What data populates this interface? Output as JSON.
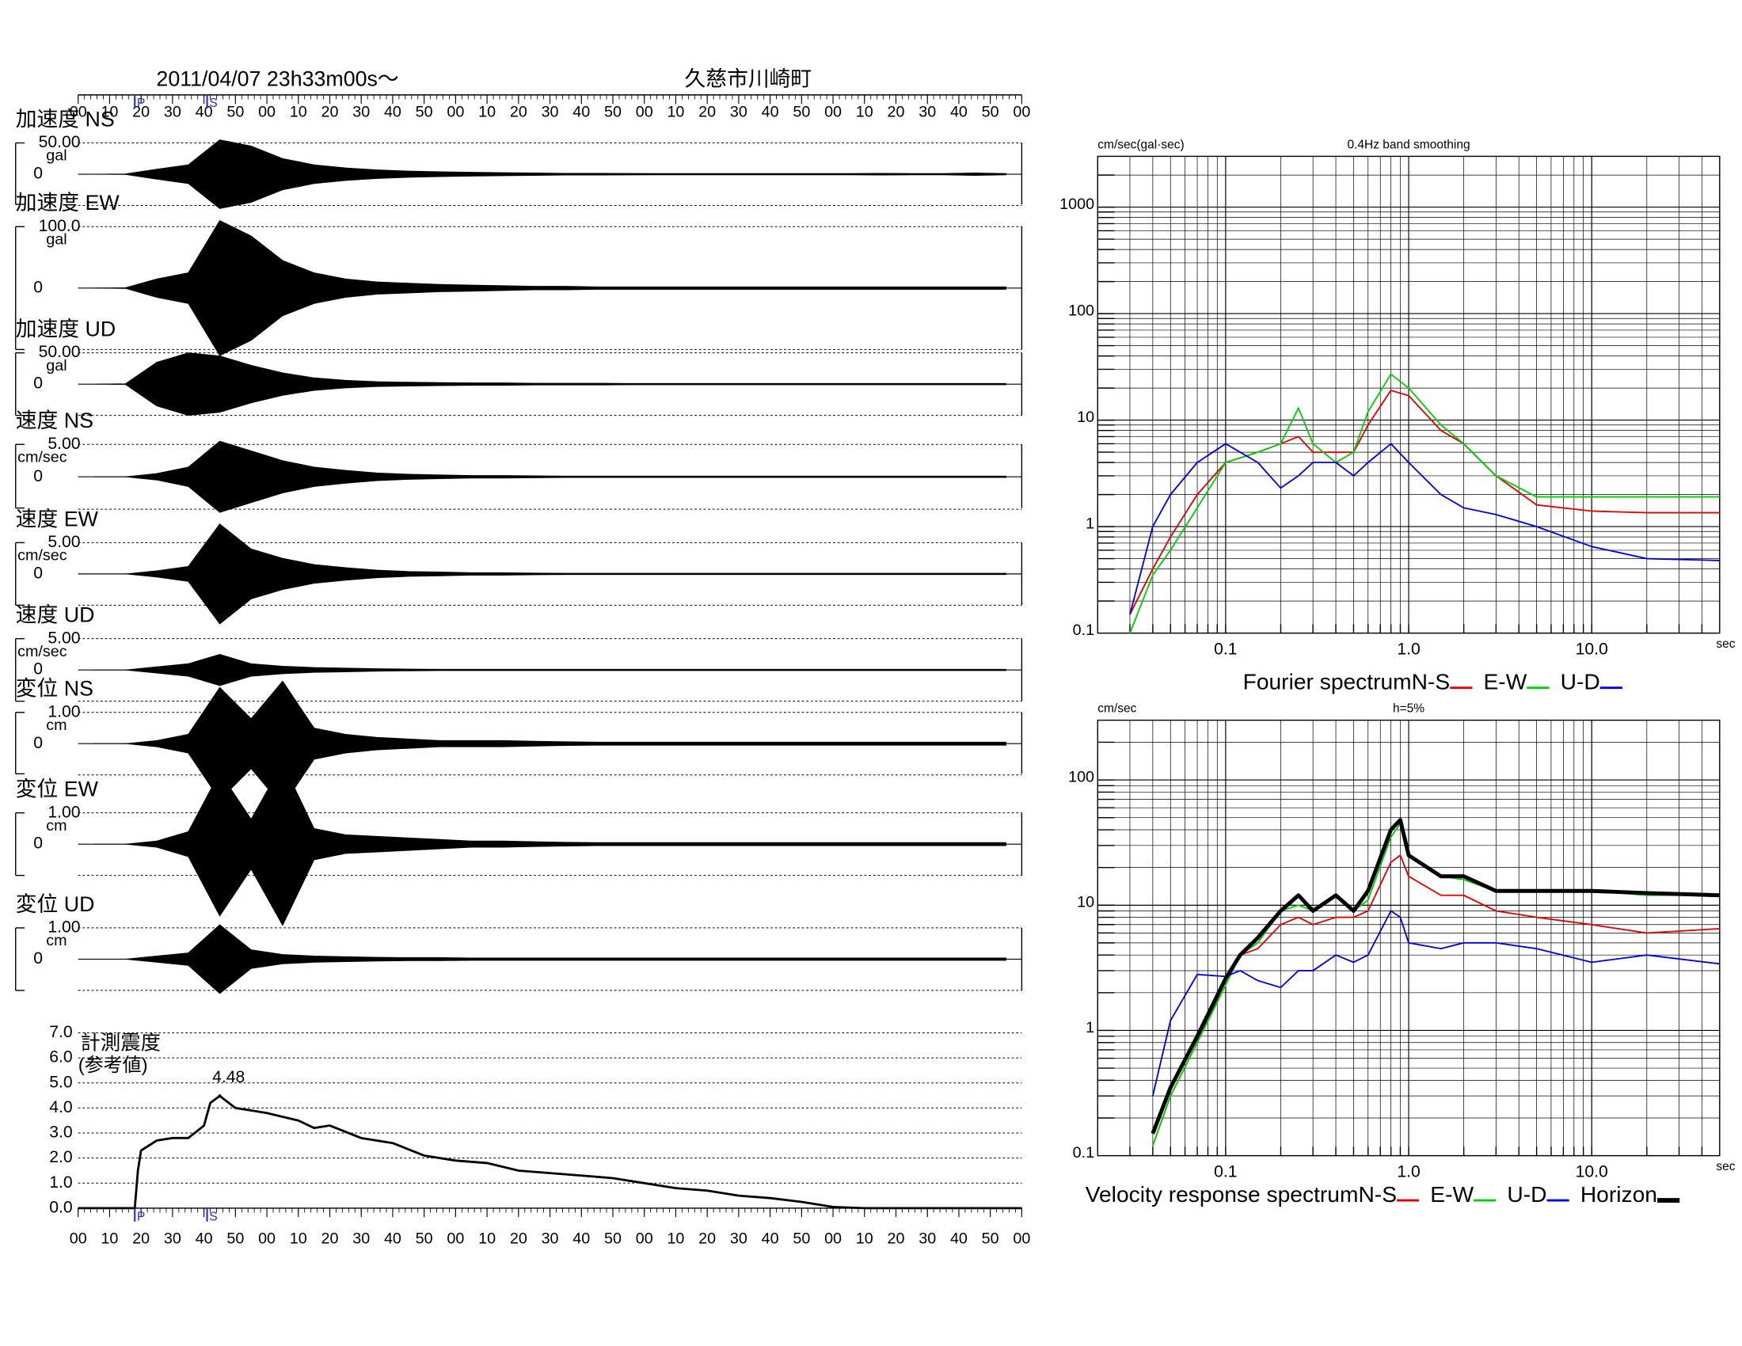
{
  "chart_data": [
    {
      "type": "waveform",
      "title": "2011/04/07  23h33m00s〜",
      "subtitle": "久慈市川崎町",
      "xlim": [
        0,
        300
      ],
      "xticks": [
        {
          "value": 0,
          "label": "00"
        },
        10,
        20,
        30,
        40,
        50,
        {
          "value": 60,
          "label": "00"
        },
        {
          "value": 70,
          "label": "10"
        },
        {
          "value": 80,
          "label": "20"
        },
        {
          "value": 90,
          "label": "30"
        },
        {
          "value": 100,
          "label": "40"
        },
        {
          "value": 110,
          "label": "50"
        },
        {
          "value": 120,
          "label": "00"
        },
        {
          "value": 130,
          "label": "10"
        },
        {
          "value": 140,
          "label": "20"
        },
        {
          "value": 150,
          "label": "30"
        },
        {
          "value": 160,
          "label": "40"
        },
        {
          "value": 170,
          "label": "50"
        },
        {
          "value": 180,
          "label": "00"
        },
        {
          "value": 190,
          "label": "10"
        },
        {
          "value": 200,
          "label": "20"
        },
        {
          "value": 210,
          "label": "30"
        },
        {
          "value": 220,
          "label": "40"
        },
        {
          "value": 230,
          "label": "50"
        },
        {
          "value": 240,
          "label": "00"
        },
        {
          "value": 250,
          "label": "10"
        },
        {
          "value": 260,
          "label": "20"
        },
        {
          "value": 270,
          "label": "30"
        },
        {
          "value": 280,
          "label": "40"
        },
        {
          "value": 290,
          "label": "50"
        },
        {
          "value": 300,
          "label": "00"
        }
      ],
      "phases": [
        {
          "label": "P",
          "time": 18
        },
        {
          "label": "S",
          "time": 41
        }
      ],
      "traces": [
        {
          "title": "加速度 NS",
          "unit": "gal",
          "ylim": [
            -50,
            50
          ],
          "yticks": [
            {
              "value": 50,
              "label": "50.00"
            },
            0
          ],
          "envelope": [
            0,
            0.3,
            8,
            15,
            55,
            45,
            25,
            15,
            10,
            7,
            5,
            4,
            3,
            2.5,
            2,
            1.5,
            1.5,
            1.2,
            1,
            1,
            1,
            1,
            1,
            1,
            1,
            1.5,
            1,
            1,
            2,
            1
          ]
        },
        {
          "title": "加速度 EW",
          "unit": "gal",
          "ylim": [
            -100,
            100
          ],
          "yticks": [
            {
              "value": 100,
              "label": "100.0"
            },
            0
          ],
          "envelope": [
            0,
            0.5,
            15,
            25,
            110,
            85,
            45,
            25,
            15,
            10,
            8,
            6,
            5,
            4,
            3,
            3,
            2,
            2,
            2,
            2,
            2,
            2,
            2,
            2,
            2,
            2,
            2,
            2,
            2,
            2
          ]
        },
        {
          "title": "加速度 UD",
          "unit": "gal",
          "ylim": [
            -50,
            50
          ],
          "yticks": [
            {
              "value": 50,
              "label": "50.00"
            },
            0
          ],
          "envelope": [
            0,
            0.5,
            35,
            50,
            45,
            30,
            18,
            10,
            6,
            4,
            3,
            2.5,
            2,
            2,
            1.5,
            1.5,
            1.5,
            1,
            1,
            1,
            1,
            1,
            1,
            1,
            1,
            1,
            1,
            1,
            1,
            1
          ]
        },
        {
          "title": "速度 NS",
          "unit": "cm/sec",
          "ylim": [
            -5,
            5
          ],
          "yticks": [
            {
              "value": 5,
              "label": "5.00"
            },
            0
          ],
          "envelope": [
            0,
            0,
            0.5,
            1.5,
            5.5,
            4,
            2.5,
            1.5,
            1,
            0.6,
            0.4,
            0.3,
            0.2,
            0.2,
            0.15,
            0.1,
            0.1,
            0.1,
            0.1,
            0.1,
            0.1,
            0.1,
            0.1,
            0.1,
            0.1,
            0.1,
            0.1,
            0.1,
            0.1,
            0.1
          ]
        },
        {
          "title": "速度 EW",
          "unit": "cm/sec",
          "ylim": [
            -5,
            5
          ],
          "yticks": [
            {
              "value": 5,
              "label": "5.00"
            },
            0
          ],
          "envelope": [
            0,
            0,
            0.5,
            1.2,
            8,
            4,
            2.5,
            1.5,
            1,
            0.6,
            0.4,
            0.3,
            0.2,
            0.2,
            0.15,
            0.1,
            0.1,
            0.1,
            0.1,
            0.1,
            0.1,
            0.1,
            0.1,
            0.1,
            0.1,
            0.1,
            0.1,
            0.1,
            0.1,
            0.1
          ]
        },
        {
          "title": "速度 UD",
          "unit": "cm/sec",
          "ylim": [
            -5,
            5
          ],
          "yticks": [
            {
              "value": 5,
              "label": "5.00"
            },
            0
          ],
          "envelope": [
            0,
            0,
            0.5,
            1,
            2.5,
            1,
            0.6,
            0.4,
            0.3,
            0.2,
            0.15,
            0.1,
            0.1,
            0.1,
            0.1,
            0.1,
            0.1,
            0.1,
            0.1,
            0.1,
            0.1,
            0.1,
            0.1,
            0.1,
            0.1,
            0.1,
            0.1,
            0.1,
            0.1,
            0.1
          ]
        },
        {
          "title": "変位 NS",
          "unit": "cm",
          "ylim": [
            -1,
            1
          ],
          "yticks": [
            {
              "value": 1,
              "label": "1.00"
            },
            0
          ],
          "envelope": [
            0,
            0,
            0.1,
            0.3,
            1.8,
            0.8,
            2,
            0.5,
            0.3,
            0.2,
            0.15,
            0.1,
            0.1,
            0.1,
            0.08,
            0.06,
            0.05,
            0.05,
            0.05,
            0.05,
            0.05,
            0.05,
            0.05,
            0.05,
            0.05,
            0.05,
            0.05,
            0.05,
            0.05,
            0.05
          ]
        },
        {
          "title": "変位 EW",
          "unit": "cm",
          "ylim": [
            -1,
            1
          ],
          "yticks": [
            {
              "value": 1,
              "label": "1.00"
            },
            0
          ],
          "envelope": [
            0,
            0,
            0.1,
            0.4,
            2.3,
            0.8,
            2.6,
            0.5,
            0.3,
            0.25,
            0.2,
            0.15,
            0.1,
            0.1,
            0.08,
            0.06,
            0.05,
            0.05,
            0.05,
            0.05,
            0.05,
            0.05,
            0.05,
            0.05,
            0.05,
            0.05,
            0.05,
            0.05,
            0.05,
            0.05
          ]
        },
        {
          "title": "変位 UD",
          "unit": "cm",
          "ylim": [
            -1,
            1
          ],
          "yticks": [
            {
              "value": 1,
              "label": "1.00"
            },
            0
          ],
          "envelope": [
            0,
            0,
            0.1,
            0.2,
            1.1,
            0.3,
            0.15,
            0.1,
            0.08,
            0.06,
            0.05,
            0.05,
            0.04,
            0.04,
            0.04,
            0.04,
            0.04,
            0.04,
            0.04,
            0.04,
            0.04,
            0.04,
            0.04,
            0.04,
            0.04,
            0.04,
            0.04,
            0.04,
            0.04,
            0.04
          ]
        }
      ]
    },
    {
      "type": "line",
      "title": "計測震度",
      "subtitle": "(参考値)",
      "color": "#000000",
      "x": [
        0,
        17,
        18,
        19,
        20,
        25,
        30,
        35,
        40,
        42,
        45,
        50,
        55,
        60,
        70,
        75,
        80,
        90,
        100,
        110,
        120,
        130,
        140,
        150,
        160,
        170,
        180,
        190,
        200,
        210,
        220,
        230,
        240,
        250,
        300
      ],
      "values": [
        0,
        0,
        0,
        1.5,
        2.3,
        2.7,
        2.8,
        2.8,
        3.3,
        4.2,
        4.48,
        4.0,
        3.9,
        3.8,
        3.5,
        3.2,
        3.3,
        2.8,
        2.6,
        2.1,
        1.9,
        1.8,
        1.5,
        1.4,
        1.3,
        1.2,
        1.0,
        0.8,
        0.7,
        0.5,
        0.4,
        0.25,
        0.05,
        0,
        0
      ],
      "ylim": [
        0,
        7
      ],
      "yticks": [
        {
          "value": 0,
          "label": "0.0"
        },
        {
          "value": 1,
          "label": "1.0"
        },
        {
          "value": 2,
          "label": "2.0"
        },
        {
          "value": 3,
          "label": "3.0"
        },
        {
          "value": 4,
          "label": "4.0"
        },
        {
          "value": 5,
          "label": "5.0"
        },
        {
          "value": 6,
          "label": "6.0"
        },
        {
          "value": 7,
          "label": "7.0"
        }
      ],
      "annotations": [
        {
          "text": "4.48",
          "x": 45,
          "y": 4.48
        }
      ]
    },
    {
      "type": "loglog",
      "title": "0.4Hz band smoothing",
      "y_label": "cm/sec(gal·sec)",
      "x_label": "sec",
      "legend_title": "Fourier spectrum ",
      "xlim": [
        0.02,
        50
      ],
      "ylim": [
        0.1,
        3000
      ],
      "xticks": [
        0.1,
        {
          "value": 1,
          "label": "1.0"
        },
        {
          "value": 10,
          "label": "10.0"
        }
      ],
      "yticks": [
        0.1,
        1,
        10,
        100,
        1000
      ],
      "x": [
        0.03,
        0.04,
        0.05,
        0.07,
        0.1,
        0.15,
        0.2,
        0.25,
        0.3,
        0.4,
        0.5,
        0.6,
        0.8,
        1,
        1.5,
        2,
        3,
        5,
        10,
        20,
        50
      ],
      "series": [
        {
          "name": "N-S",
          "color": "#e00000",
          "width": 1.3,
          "values": [
            0.15,
            0.4,
            0.8,
            2,
            4,
            5,
            6,
            7,
            5,
            5,
            5,
            9,
            19,
            17,
            8,
            6,
            3,
            1.6,
            1.4,
            1.35,
            1.35
          ]
        },
        {
          "name": "E-W",
          "color": "#00d000",
          "width": 1.3,
          "values": [
            0.1,
            0.35,
            0.6,
            1.5,
            4,
            5,
            6,
            13,
            6,
            4,
            5,
            12,
            27,
            20,
            9,
            6,
            3,
            1.9,
            1.9,
            1.9,
            1.9
          ]
        },
        {
          "name": "U-D",
          "color": "#0000e0",
          "width": 1.3,
          "values": [
            0.15,
            1,
            2,
            4,
            6,
            4,
            2.3,
            3,
            4,
            4,
            3,
            4,
            6,
            4,
            2,
            1.5,
            1.3,
            1,
            0.65,
            0.5,
            0.48
          ]
        }
      ]
    },
    {
      "type": "loglog",
      "title": "h=5%",
      "y_label": "cm/sec",
      "x_label": "sec",
      "legend_title": "Velocity response spectrum ",
      "xlim": [
        0.02,
        50
      ],
      "ylim": [
        0.1,
        300
      ],
      "xticks": [
        0.1,
        {
          "value": 1,
          "label": "1.0"
        },
        {
          "value": 10,
          "label": "10.0"
        }
      ],
      "yticks": [
        0.1,
        1,
        10,
        100
      ],
      "x": [
        0.04,
        0.05,
        0.07,
        0.1,
        0.12,
        0.15,
        0.2,
        0.25,
        0.3,
        0.4,
        0.5,
        0.6,
        0.8,
        0.9,
        1,
        1.5,
        2,
        3,
        5,
        10,
        20,
        50
      ],
      "series": [
        {
          "name": "N-S",
          "color": "#e00000",
          "width": 1.3,
          "values": [
            0.12,
            0.3,
            0.8,
            2.5,
            4,
            4.5,
            7,
            8,
            7,
            8,
            8,
            9,
            22,
            25,
            17,
            12,
            12,
            9,
            8,
            7,
            6,
            6.5
          ]
        },
        {
          "name": "E-W",
          "color": "#00d000",
          "width": 1.3,
          "values": [
            0.12,
            0.3,
            0.8,
            2.3,
            4,
            5,
            9,
            10,
            9,
            12,
            9,
            11,
            35,
            45,
            25,
            17,
            16,
            13,
            13,
            13,
            12,
            12
          ]
        },
        {
          "name": "U-D",
          "color": "#0000e0",
          "width": 1.3,
          "values": [
            0.3,
            1.2,
            2.8,
            2.7,
            3,
            2.5,
            2.2,
            3,
            3,
            4,
            3.5,
            4,
            9,
            8,
            5,
            4.5,
            5,
            5,
            4.5,
            3.5,
            4,
            3.4
          ]
        },
        {
          "name": "Horizon",
          "color": "#000000",
          "width": 3.5,
          "values": [
            0.15,
            0.35,
            0.9,
            2.6,
            4,
            5.5,
            9,
            12,
            9,
            12,
            9,
            13,
            40,
            48,
            25,
            17,
            17,
            13,
            13,
            13,
            12.5,
            12
          ]
        }
      ]
    }
  ]
}
